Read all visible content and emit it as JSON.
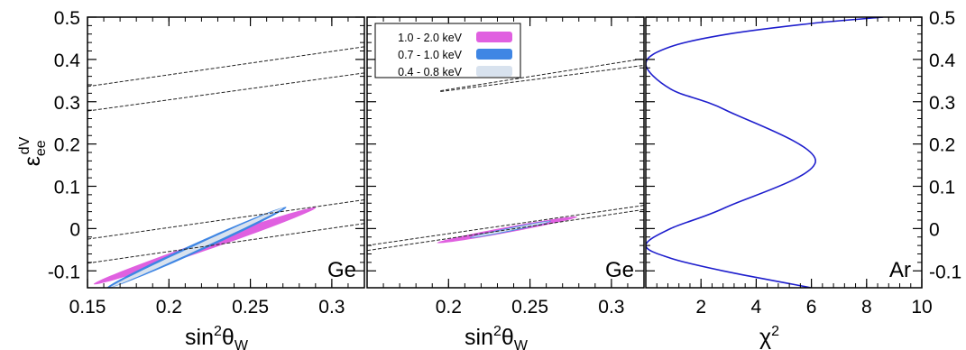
{
  "chart_data": [
    {
      "type": "line",
      "panel": "left",
      "label": "Ge",
      "xlabel": "sin²θW",
      "ylabel": "εee dV",
      "xlim": [
        0.15,
        0.32
      ],
      "ylim": [
        -0.14,
        0.5
      ],
      "x_ticks": [
        "0.15",
        "0.2",
        "0.25",
        "0.3"
      ],
      "x_tick_values": [
        0.15,
        0.2,
        0.25,
        0.3
      ],
      "y_ticks": [
        "-0.1",
        "0",
        "0.1",
        "0.2",
        "0.3",
        "0.4",
        "0.5"
      ],
      "y_tick_values": [
        -0.1,
        0,
        0.1,
        0.2,
        0.3,
        0.4,
        0.5
      ],
      "ellipses": [
        {
          "name": "1.0 - 2.0 keV",
          "color": "#e060e0",
          "center": [
            0.222,
            -0.041
          ],
          "angle_axis": [
            0.068,
            0.091
          ],
          "width_axis": [
            0.0055,
            -0.0045
          ]
        },
        {
          "name": "0.7 - 1.0 keV",
          "color": "#3f86e4",
          "center": [
            0.217,
            -0.045
          ],
          "angle_axis": [
            0.055,
            0.096
          ],
          "width_axis": [
            0.004,
            -0.005
          ]
        },
        {
          "name": "0.4 - 0.8 keV",
          "color": "#d8e2ee",
          "center": [
            0.217,
            -0.045
          ],
          "angle_axis": [
            0.053,
            0.094
          ],
          "width_axis": [
            0.002,
            -0.0028
          ]
        }
      ],
      "dashed_lines": [
        {
          "x": [
            0.15,
            0.32
          ],
          "y": [
            0.336,
            0.43
          ]
        },
        {
          "x": [
            0.15,
            0.32
          ],
          "y": [
            0.278,
            0.368
          ]
        },
        {
          "x": [
            0.15,
            0.32
          ],
          "y": [
            -0.025,
            0.068
          ]
        },
        {
          "x": [
            0.15,
            0.32
          ],
          "y": [
            -0.082,
            0.012
          ]
        }
      ]
    },
    {
      "type": "line",
      "panel": "middle",
      "label": "Ge",
      "xlabel": "sin²θW",
      "xlim": [
        0.15,
        0.32
      ],
      "ylim": [
        -0.14,
        0.5
      ],
      "x_ticks": [
        "0.2",
        "0.25",
        "0.3"
      ],
      "x_tick_values": [
        0.2,
        0.25,
        0.3
      ],
      "legend": {
        "placement": "top-left",
        "entries": [
          {
            "label": "1.0 - 2.0 keV",
            "color": "#e060e0"
          },
          {
            "label": "0.7 - 1.0 keV",
            "color": "#3f86e4"
          },
          {
            "label": "0.4 - 0.8 keV",
            "color": "#d8e2ee"
          }
        ]
      },
      "ellipses": [
        {
          "name": "1.0 - 2.0 keV",
          "color": "#e060e0",
          "center": [
            0.236,
            -0.003
          ],
          "angle_axis": [
            0.043,
            0.031
          ],
          "width_axis": [
            0.0018,
            -0.0055
          ]
        },
        {
          "name": "0.7 - 1.0 keV",
          "color": "#3f86e4",
          "center": [
            0.238,
            -0.002
          ],
          "angle_axis": [
            0.025,
            0.02
          ],
          "width_axis": [
            0.0012,
            -0.0035
          ]
        },
        {
          "name": "0.4 - 0.8 keV",
          "color": "#d8e2ee",
          "center": [
            0.238,
            -0.002
          ],
          "angle_axis": [
            0.024,
            0.019
          ],
          "width_axis": [
            0.0007,
            -0.002
          ]
        }
      ],
      "dashed_lines": [
        {
          "x": [
            0.195,
            0.32
          ],
          "y": [
            0.326,
            0.402
          ]
        },
        {
          "x": [
            0.195,
            0.32
          ],
          "y": [
            0.324,
            0.386
          ]
        },
        {
          "x": [
            0.15,
            0.32
          ],
          "y": [
            -0.04,
            0.055
          ]
        },
        {
          "x": [
            0.15,
            0.32
          ],
          "y": [
            -0.052,
            0.045
          ]
        }
      ]
    },
    {
      "type": "line",
      "panel": "right",
      "label": "Ar",
      "xlabel": "χ²",
      "xlim": [
        0.0,
        10.0
      ],
      "ylim": [
        -0.14,
        0.5
      ],
      "x_ticks": [
        "2",
        "4",
        "6",
        "8",
        "10"
      ],
      "x_tick_values": [
        2,
        4,
        6,
        8,
        10
      ],
      "y_ticks": [
        "-0.1",
        "0",
        "0.1",
        "0.2",
        "0.3",
        "0.4",
        "0.5"
      ],
      "y_tick_values": [
        -0.1,
        0,
        0.1,
        0.2,
        0.3,
        0.4,
        0.5
      ],
      "series": [
        {
          "color": "#1e1ecd",
          "x": [
            6.0,
            2.8,
            0.9,
            0.0,
            0.9,
            2.9,
            6.15,
            2.9,
            0.9,
            0.0,
            0.9,
            3.0,
            6.0,
            8.6
          ],
          "y": [
            -0.14,
            -0.1,
            -0.07,
            -0.04,
            0.0,
            0.05,
            0.16,
            0.28,
            0.33,
            0.39,
            0.43,
            0.46,
            0.485,
            0.5
          ]
        }
      ]
    }
  ]
}
